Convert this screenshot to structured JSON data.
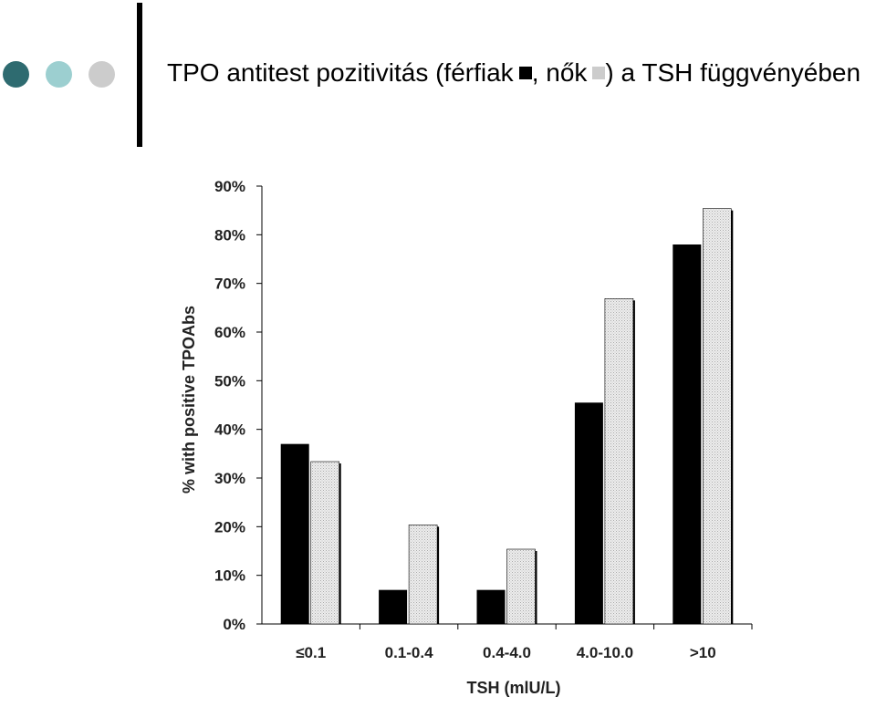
{
  "slide": {
    "title_pre": "TPO antitest pozitivitás (férfiak",
    "title_mid": ", nők",
    "title_post": ") a TSH függvényében",
    "dot_colors": [
      "#2e6b70",
      "#9ccfd0",
      "#cccccc"
    ]
  },
  "chart_data": {
    "type": "bar",
    "categories": [
      "≤0.1",
      "0.1-0.4",
      "0.4-4.0",
      "4.0-10.0",
      ">10"
    ],
    "series": [
      {
        "values": [
          37,
          7,
          7,
          45.5,
          78
        ],
        "color": "#000000"
      },
      {
        "values": [
          33,
          20,
          15,
          66.5,
          85
        ],
        "color": "#dddddd"
      }
    ],
    "xlabel": "TSH (mlU/L)",
    "ylabel": "% with positive TPOAbs",
    "ylim": [
      0,
      90
    ],
    "yticks": [
      "0%",
      "10%",
      "20%",
      "30%",
      "40%",
      "50%",
      "60%",
      "70%",
      "80%",
      "90%"
    ],
    "grid": false
  }
}
